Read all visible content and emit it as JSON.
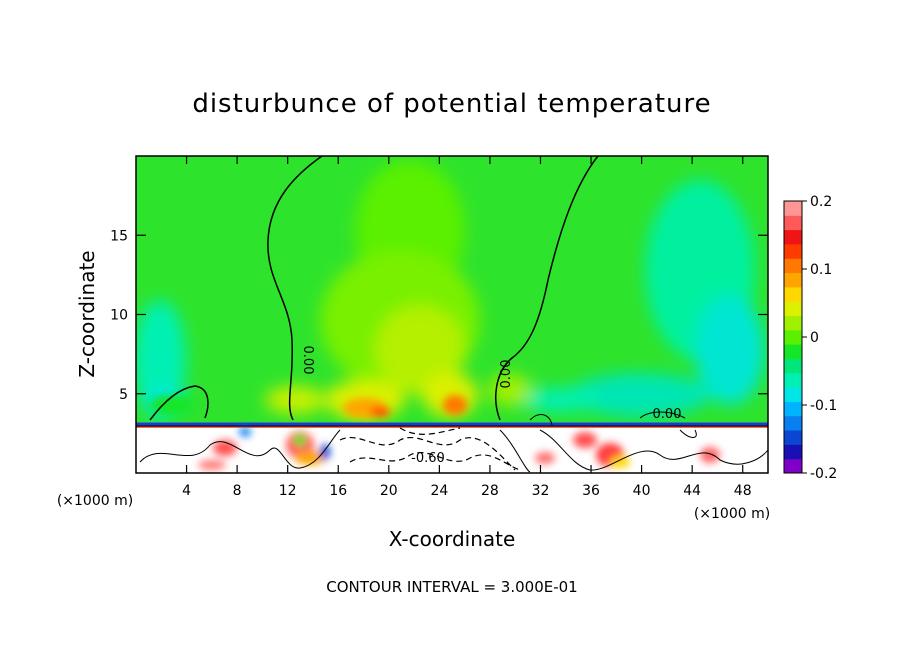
{
  "chart_data": {
    "type": "heatmap",
    "title": "disturbunce of potential temperature",
    "xlabel": "X-coordinate",
    "ylabel": "Z-coordinate",
    "x_unit_left": "(×1000 m)",
    "x_unit_right": "(×1000 m)",
    "xlim": [
      0,
      50
    ],
    "ylim": [
      0,
      20
    ],
    "x_ticks": [
      "4",
      "8",
      "12",
      "16",
      "20",
      "24",
      "28",
      "32",
      "36",
      "40",
      "44",
      "48"
    ],
    "y_ticks": [
      "5",
      "10",
      "15"
    ],
    "x_tick_values": [
      4,
      8,
      12,
      16,
      20,
      24,
      28,
      32,
      36,
      40,
      44,
      48
    ],
    "y_tick_values": [
      5,
      10,
      15
    ],
    "colorbar": {
      "min": -0.2,
      "max": 0.2,
      "tick_labels": [
        "0.2",
        "0.1",
        "0",
        "-0.1",
        "-0.2"
      ],
      "tick_values": [
        0.2,
        0.1,
        0,
        -0.1,
        -0.2
      ],
      "colors": [
        "#7f00c8",
        "#1a0fb4",
        "#0a46d2",
        "#0a7ff0",
        "#00b4ff",
        "#00e6e6",
        "#00f0b4",
        "#00e678",
        "#14e628",
        "#5af000",
        "#a0f000",
        "#dcf000",
        "#ffd700",
        "#ffa500",
        "#ff7800",
        "#ff3c00",
        "#f01414",
        "#ff5a5a",
        "#ff9696"
      ]
    },
    "contour_labels": [
      "0.00",
      "0.00",
      "0.00",
      "-0.60"
    ],
    "annotation": "CONTOUR INTERVAL = 3.000E-01"
  }
}
